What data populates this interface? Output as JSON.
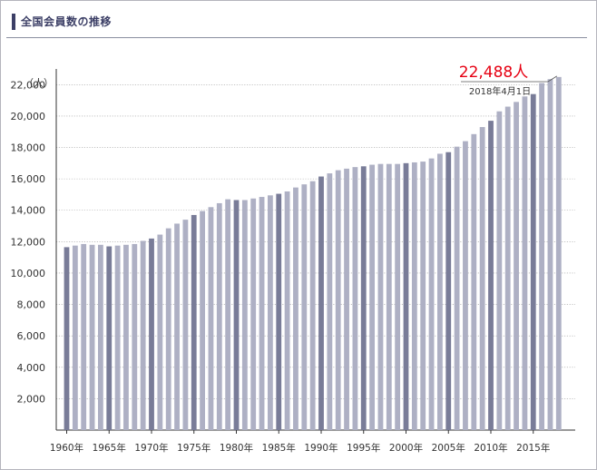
{
  "header": {
    "title": "全国会員数の推移"
  },
  "annotation": {
    "value": "22,488人",
    "date": "2018年4月1日"
  },
  "colors": {
    "bar": "#aeb0c4",
    "bar_emphasis": "#797c98",
    "grid": "#a0a0a0",
    "accent": "#e60012",
    "title": "#3c3f66"
  },
  "chart_data": {
    "type": "bar",
    "ylabel": "（人）",
    "ylim": [
      0,
      23000
    ],
    "yticks": [
      2000,
      4000,
      6000,
      8000,
      10000,
      12000,
      14000,
      16000,
      18000,
      20000,
      22000
    ],
    "ytick_labels": [
      "2,000",
      "4,000",
      "6,000",
      "8,000",
      "10,000",
      "12,000",
      "14,000",
      "16,000",
      "18,000",
      "20,000",
      "22,000"
    ],
    "xtick_labels": [
      "1960年",
      "1965年",
      "1970年",
      "1975年",
      "1980年",
      "1985年",
      "1990年",
      "1995年",
      "2000年",
      "2005年",
      "2010年",
      "2015年"
    ],
    "grid": true,
    "categories": [
      1960,
      1961,
      1962,
      1963,
      1964,
      1965,
      1966,
      1967,
      1968,
      1969,
      1970,
      1971,
      1972,
      1973,
      1974,
      1975,
      1976,
      1977,
      1978,
      1979,
      1980,
      1981,
      1982,
      1983,
      1984,
      1985,
      1986,
      1987,
      1988,
      1989,
      1990,
      1991,
      1992,
      1993,
      1994,
      1995,
      1996,
      1997,
      1998,
      1999,
      2000,
      2001,
      2002,
      2003,
      2004,
      2005,
      2006,
      2007,
      2008,
      2009,
      2010,
      2011,
      2012,
      2013,
      2014,
      2015,
      2016,
      2017,
      2018
    ],
    "values": [
      11650,
      11750,
      11850,
      11800,
      11800,
      11700,
      11750,
      11800,
      11850,
      12050,
      12200,
      12450,
      12850,
      13150,
      13400,
      13700,
      13950,
      14200,
      14450,
      14700,
      14650,
      14650,
      14750,
      14850,
      14950,
      15050,
      15200,
      15450,
      15650,
      15850,
      16150,
      16350,
      16550,
      16650,
      16750,
      16800,
      16900,
      16950,
      16950,
      16950,
      17000,
      17050,
      17100,
      17300,
      17600,
      17700,
      18050,
      18400,
      18850,
      19300,
      19700,
      20300,
      20600,
      20900,
      21250,
      21400,
      22100,
      22350,
      22488
    ],
    "emphasized": [
      1960,
      1965,
      1970,
      1975,
      1980,
      1985,
      1990,
      1995,
      2000,
      2005,
      2010,
      2015
    ]
  }
}
